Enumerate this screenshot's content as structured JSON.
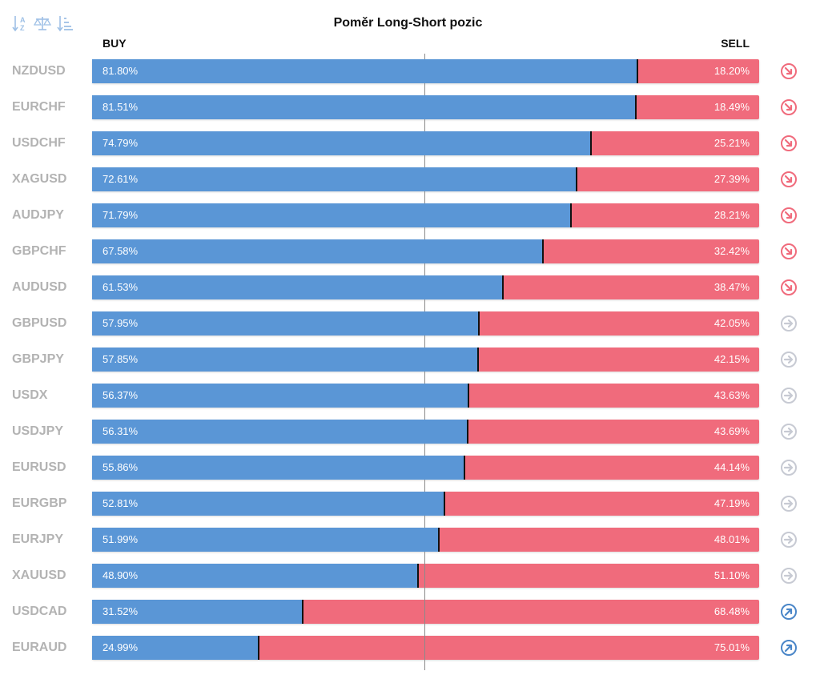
{
  "title": "Poměr Long-Short pozic",
  "buy_label": "BUY",
  "sell_label": "SELL",
  "colors": {
    "buy": "#5a96d6",
    "sell": "#f06b7c",
    "trend_down": "#f06b7c",
    "trend_neutral": "#c7cad3",
    "trend_up": "#4a86c8",
    "toolbar_icon": "#9ec0e6"
  },
  "toolbar": {
    "icons": [
      "sort-alpha-icon",
      "balance-icon",
      "sort-descending-icon"
    ]
  },
  "chart_data": {
    "type": "bar",
    "stacked": true,
    "orientation": "horizontal",
    "title": "Poměr Long-Short pozic",
    "categories": [
      "NZDUSD",
      "EURCHF",
      "USDCHF",
      "XAGUSD",
      "AUDJPY",
      "GBPCHF",
      "AUDUSD",
      "GBPUSD",
      "GBPJPY",
      "USDX",
      "USDJPY",
      "EURUSD",
      "EURGBP",
      "EURJPY",
      "XAUUSD",
      "USDCAD",
      "EURAUD"
    ],
    "series": [
      {
        "name": "BUY",
        "values": [
          81.8,
          81.51,
          74.79,
          72.61,
          71.79,
          67.58,
          61.53,
          57.95,
          57.85,
          56.37,
          56.31,
          55.86,
          52.81,
          51.99,
          48.9,
          31.52,
          24.99
        ]
      },
      {
        "name": "SELL",
        "values": [
          18.2,
          18.49,
          25.21,
          27.39,
          28.21,
          32.42,
          38.47,
          42.05,
          42.15,
          43.63,
          43.69,
          44.14,
          47.19,
          48.01,
          51.1,
          68.48,
          75.01
        ]
      }
    ],
    "buy_labels": [
      "81.80%",
      "81.51%",
      "74.79%",
      "72.61%",
      "71.79%",
      "67.58%",
      "61.53%",
      "57.95%",
      "57.85%",
      "56.37%",
      "56.31%",
      "55.86%",
      "52.81%",
      "51.99%",
      "48.90%",
      "31.52%",
      "24.99%"
    ],
    "sell_labels": [
      "18.20%",
      "18.49%",
      "25.21%",
      "27.39%",
      "28.21%",
      "32.42%",
      "38.47%",
      "42.05%",
      "42.15%",
      "43.63%",
      "43.69%",
      "44.14%",
      "47.19%",
      "48.01%",
      "51.10%",
      "68.48%",
      "75.01%"
    ],
    "trends": [
      "down",
      "down",
      "down",
      "down",
      "down",
      "down",
      "down",
      "neutral",
      "neutral",
      "neutral",
      "neutral",
      "neutral",
      "neutral",
      "neutral",
      "neutral",
      "up",
      "up"
    ],
    "xlim": [
      0,
      100
    ],
    "reference_line": 50
  }
}
